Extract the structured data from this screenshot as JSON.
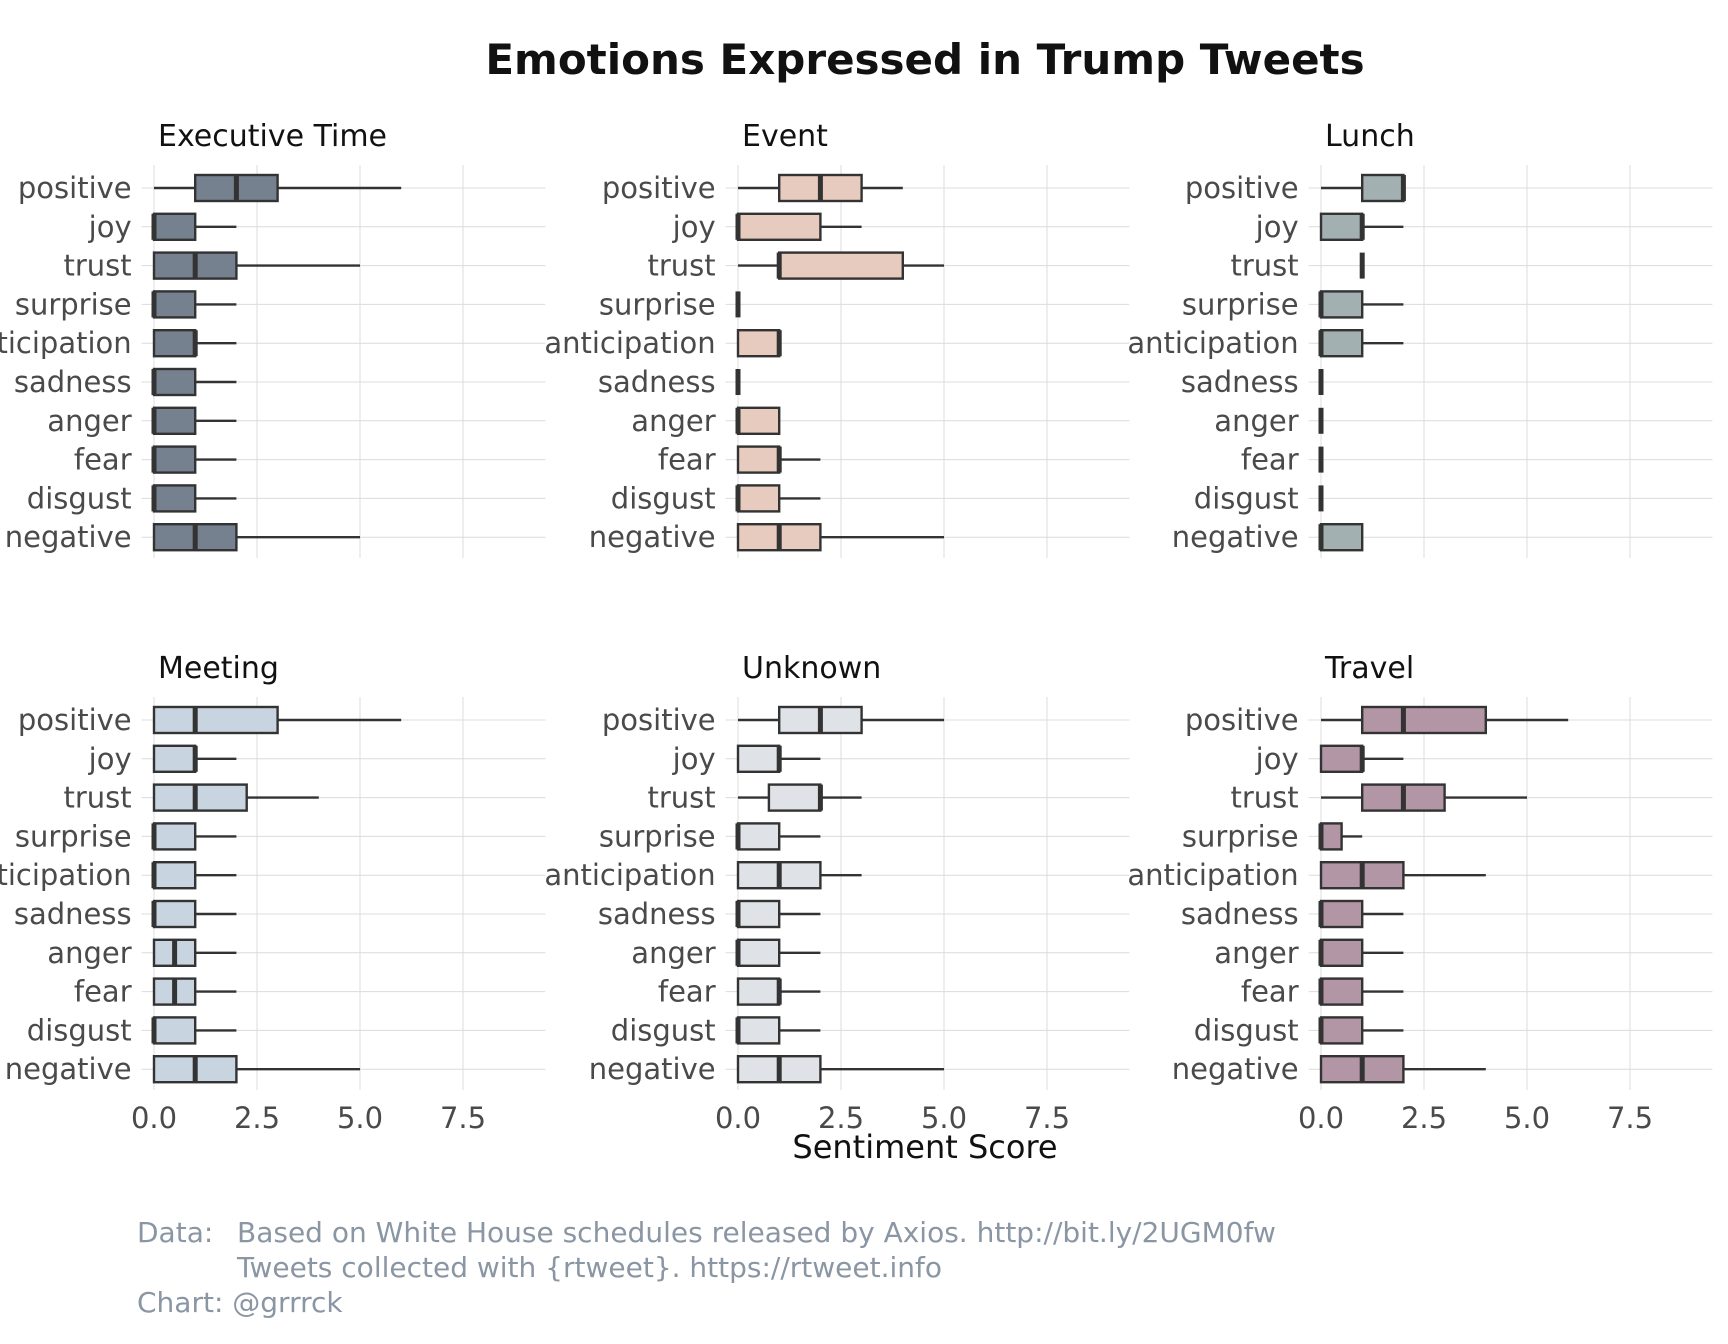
{
  "chart_data": {
    "type": "boxplot",
    "title": "Emotions Expressed in Trump Tweets",
    "xlabel": "Sentiment Score",
    "xlim": [
      -0.3,
      9.5
    ],
    "x_ticks": [
      0.0,
      2.5,
      5.0,
      7.5
    ],
    "x_tick_labels": [
      "0.0",
      "2.5",
      "5.0",
      "7.5"
    ],
    "categories": [
      "positive",
      "joy",
      "trust",
      "surprise",
      "anticipation",
      "sadness",
      "anger",
      "fear",
      "disgust",
      "negative"
    ],
    "grid": true,
    "legend": "none",
    "panels": [
      {
        "name": "Executive Time",
        "color": "#76818f",
        "boxes": [
          {
            "min": 0,
            "q1": 1,
            "median": 2,
            "q3": 3,
            "max": 6
          },
          {
            "min": 0,
            "q1": 0,
            "median": 0,
            "q3": 1,
            "max": 2
          },
          {
            "min": 0,
            "q1": 0,
            "median": 1,
            "q3": 2,
            "max": 5
          },
          {
            "min": 0,
            "q1": 0,
            "median": 0,
            "q3": 1,
            "max": 2
          },
          {
            "min": 0,
            "q1": 0,
            "median": 1,
            "q3": 1,
            "max": 2
          },
          {
            "min": 0,
            "q1": 0,
            "median": 0,
            "q3": 1,
            "max": 2
          },
          {
            "min": 0,
            "q1": 0,
            "median": 0,
            "q3": 1,
            "max": 2
          },
          {
            "min": 0,
            "q1": 0,
            "median": 0,
            "q3": 1,
            "max": 2
          },
          {
            "min": 0,
            "q1": 0,
            "median": 0,
            "q3": 1,
            "max": 2
          },
          {
            "min": 0,
            "q1": 0,
            "median": 1,
            "q3": 2,
            "max": 5
          }
        ]
      },
      {
        "name": "Event",
        "color": "#e8cbbf",
        "boxes": [
          {
            "min": 0,
            "q1": 1,
            "median": 2,
            "q3": 3,
            "max": 4
          },
          {
            "min": 0,
            "q1": 0,
            "median": 0,
            "q3": 2,
            "max": 3
          },
          {
            "min": 0,
            "q1": 1,
            "median": 1,
            "q3": 4,
            "max": 5
          },
          {
            "min": 0,
            "q1": 0,
            "median": 0,
            "q3": 0,
            "max": 0
          },
          {
            "min": 0,
            "q1": 0,
            "median": 1,
            "q3": 1,
            "max": 1
          },
          {
            "min": 0,
            "q1": 0,
            "median": 0,
            "q3": 0,
            "max": 0
          },
          {
            "min": 0,
            "q1": 0,
            "median": 0,
            "q3": 1,
            "max": 1
          },
          {
            "min": 0,
            "q1": 0,
            "median": 1,
            "q3": 1,
            "max": 2
          },
          {
            "min": 0,
            "q1": 0,
            "median": 0,
            "q3": 1,
            "max": 2
          },
          {
            "min": 0,
            "q1": 0,
            "median": 1,
            "q3": 2,
            "max": 5
          }
        ]
      },
      {
        "name": "Lunch",
        "color": "#a2b0b2",
        "boxes": [
          {
            "min": 0,
            "q1": 1,
            "median": 2,
            "q3": 2,
            "max": 2
          },
          {
            "min": 0,
            "q1": 0,
            "median": 1,
            "q3": 1,
            "max": 2
          },
          {
            "min": 1,
            "q1": 1,
            "median": 1,
            "q3": 1,
            "max": 1
          },
          {
            "min": 0,
            "q1": 0,
            "median": 0,
            "q3": 1,
            "max": 2
          },
          {
            "min": 0,
            "q1": 0,
            "median": 0,
            "q3": 1,
            "max": 2
          },
          {
            "min": 0,
            "q1": 0,
            "median": 0,
            "q3": 0,
            "max": 0
          },
          {
            "min": 0,
            "q1": 0,
            "median": 0,
            "q3": 0,
            "max": 0
          },
          {
            "min": 0,
            "q1": 0,
            "median": 0,
            "q3": 0,
            "max": 0
          },
          {
            "min": 0,
            "q1": 0,
            "median": 0,
            "q3": 0,
            "max": 0
          },
          {
            "min": 0,
            "q1": 0,
            "median": 0,
            "q3": 1,
            "max": 1
          }
        ]
      },
      {
        "name": "Meeting",
        "color": "#c8d4e0",
        "boxes": [
          {
            "min": 0,
            "q1": 0,
            "median": 1,
            "q3": 3,
            "max": 6
          },
          {
            "min": 0,
            "q1": 0,
            "median": 1,
            "q3": 1,
            "max": 2
          },
          {
            "min": 0,
            "q1": 0,
            "median": 1,
            "q3": 2.25,
            "max": 4
          },
          {
            "min": 0,
            "q1": 0,
            "median": 0,
            "q3": 1,
            "max": 2
          },
          {
            "min": 0,
            "q1": 0,
            "median": 0,
            "q3": 1,
            "max": 2
          },
          {
            "min": 0,
            "q1": 0,
            "median": 0,
            "q3": 1,
            "max": 2
          },
          {
            "min": 0,
            "q1": 0,
            "median": 0.5,
            "q3": 1,
            "max": 2
          },
          {
            "min": 0,
            "q1": 0,
            "median": 0.5,
            "q3": 1,
            "max": 2
          },
          {
            "min": 0,
            "q1": 0,
            "median": 0,
            "q3": 1,
            "max": 2
          },
          {
            "min": 0,
            "q1": 0,
            "median": 1,
            "q3": 2,
            "max": 5
          }
        ]
      },
      {
        "name": "Unknown",
        "color": "#dfe3e7",
        "boxes": [
          {
            "min": 0,
            "q1": 1,
            "median": 2,
            "q3": 3,
            "max": 5
          },
          {
            "min": 0,
            "q1": 0,
            "median": 1,
            "q3": 1,
            "max": 2
          },
          {
            "min": 0,
            "q1": 0.75,
            "median": 2,
            "q3": 2,
            "max": 3
          },
          {
            "min": 0,
            "q1": 0,
            "median": 0,
            "q3": 1,
            "max": 2
          },
          {
            "min": 0,
            "q1": 0,
            "median": 1,
            "q3": 2,
            "max": 3
          },
          {
            "min": 0,
            "q1": 0,
            "median": 0,
            "q3": 1,
            "max": 2
          },
          {
            "min": 0,
            "q1": 0,
            "median": 0,
            "q3": 1,
            "max": 2
          },
          {
            "min": 0,
            "q1": 0,
            "median": 1,
            "q3": 1,
            "max": 2
          },
          {
            "min": 0,
            "q1": 0,
            "median": 0,
            "q3": 1,
            "max": 2
          },
          {
            "min": 0,
            "q1": 0,
            "median": 1,
            "q3": 2,
            "max": 5
          }
        ]
      },
      {
        "name": "Travel",
        "color": "#b396a5",
        "boxes": [
          {
            "min": 0,
            "q1": 1,
            "median": 2,
            "q3": 4,
            "max": 6
          },
          {
            "min": 0,
            "q1": 0,
            "median": 1,
            "q3": 1,
            "max": 2
          },
          {
            "min": 0,
            "q1": 1,
            "median": 2,
            "q3": 3,
            "max": 5
          },
          {
            "min": 0,
            "q1": 0,
            "median": 0,
            "q3": 0.5,
            "max": 1
          },
          {
            "min": 0,
            "q1": 0,
            "median": 1,
            "q3": 2,
            "max": 4
          },
          {
            "min": 0,
            "q1": 0,
            "median": 0,
            "q3": 1,
            "max": 2
          },
          {
            "min": 0,
            "q1": 0,
            "median": 0,
            "q3": 1,
            "max": 2
          },
          {
            "min": 0,
            "q1": 0,
            "median": 0,
            "q3": 1,
            "max": 2
          },
          {
            "min": 0,
            "q1": 0,
            "median": 0,
            "q3": 1,
            "max": 2
          },
          {
            "min": 0,
            "q1": 0,
            "median": 1,
            "q3": 2,
            "max": 4
          }
        ]
      }
    ]
  },
  "caption": {
    "data_label": "Data:",
    "line1": "Based on White House schedules released by Axios. http://bit.ly/2UGM0fw",
    "line2": "Tweets collected with {rtweet}. https://rtweet.info",
    "chart_credit": "Chart: @grrrck"
  },
  "colors": {
    "text": "#4a4a4a",
    "grid": "#dcdcdc",
    "outline": "#333333",
    "caption": "#8a96a3"
  }
}
